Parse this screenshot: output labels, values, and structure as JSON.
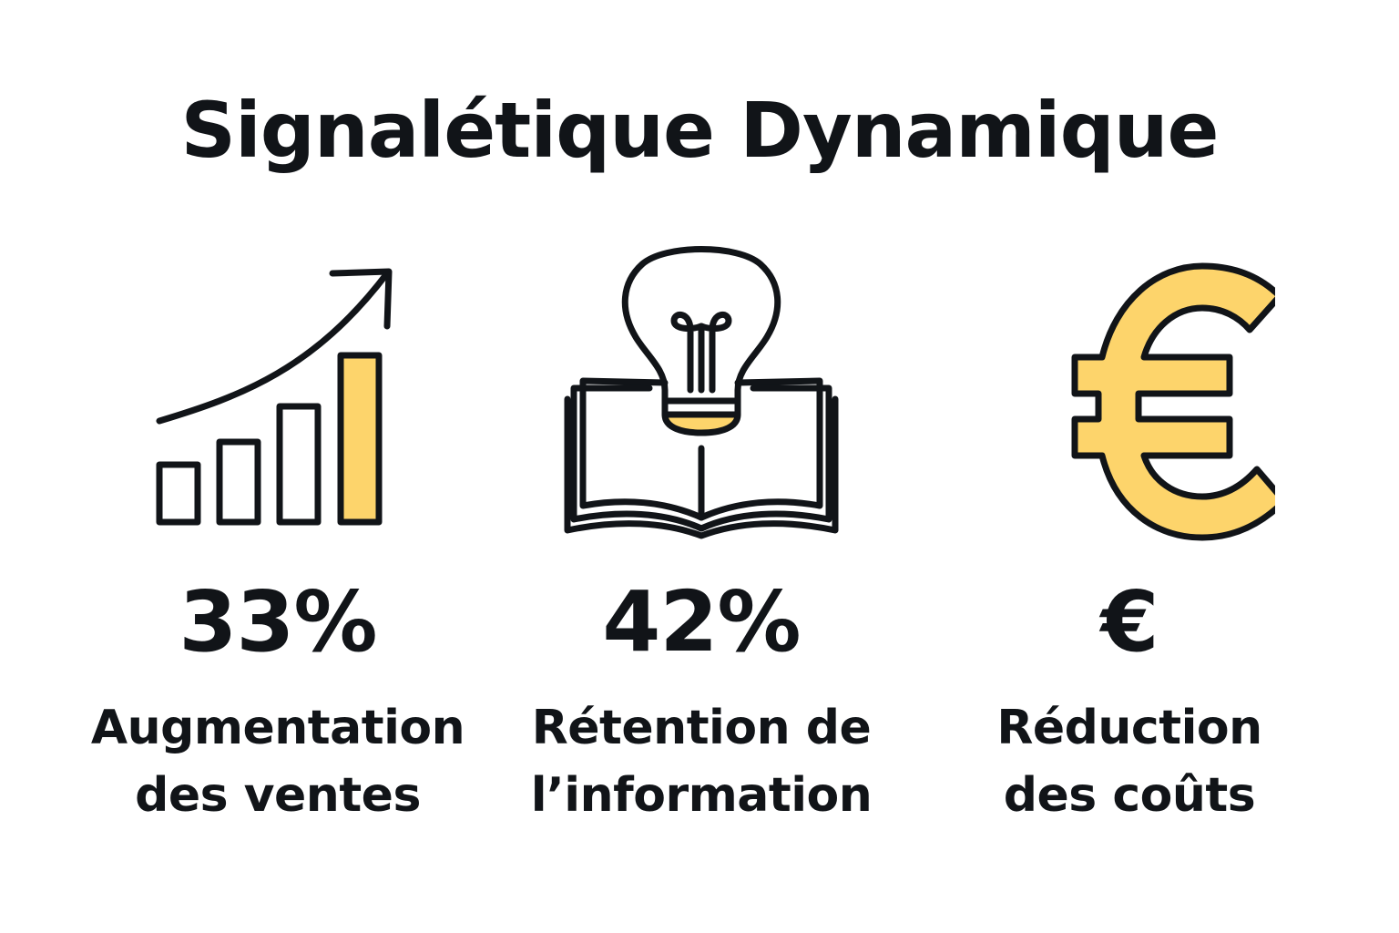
{
  "title": "Signalétique Dynamique",
  "colors": {
    "accent": "#FDD46B",
    "ink": "#111418",
    "background": "#FFFFFF"
  },
  "stats": [
    {
      "icon": "bar-chart-growth-icon",
      "value": "33%",
      "label_line1": "Augmentation",
      "label_line2": "des ventes"
    },
    {
      "icon": "lightbulb-book-icon",
      "value": "42%",
      "label_line1": "Rétention de",
      "label_line2": "l’information"
    },
    {
      "icon": "euro-icon",
      "value": "€",
      "label_line1": "Réduction",
      "label_line2": "des coûts"
    }
  ]
}
